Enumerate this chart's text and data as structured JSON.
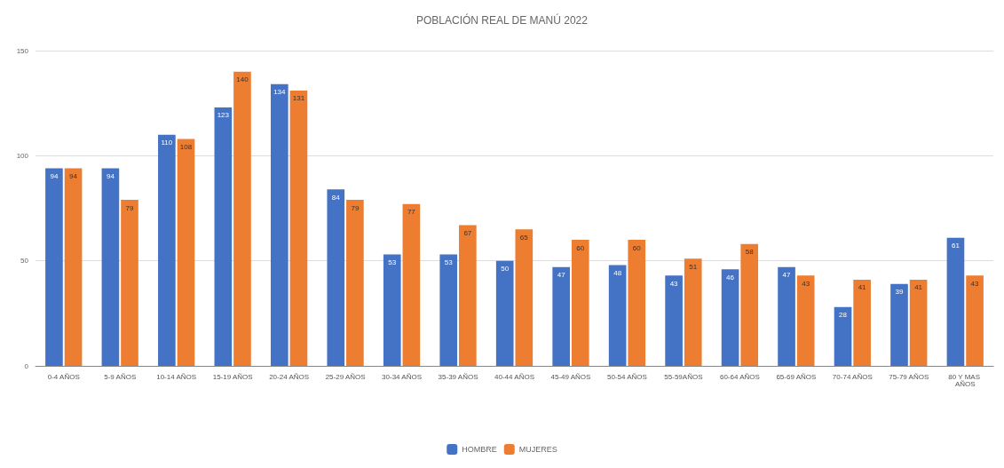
{
  "chart_data": {
    "type": "bar",
    "title": "POBLACIÓN REAL DE MANÚ 2022",
    "categories": [
      "0-4 AÑOS",
      "5-9 AÑOS",
      "10-14 AÑOS",
      "15-19 AÑOS",
      "20-24 AÑOS",
      "25-29 AÑOS",
      "30-34 AÑOS",
      "35-39 AÑOS",
      "40-44 AÑOS",
      "45-49 AÑOS",
      "50-54 AÑOS",
      "55-59AÑOS",
      "60-64 AÑOS",
      "65-69 AÑOS",
      "70-74 AÑOS",
      "75-79 AÑOS",
      "80 Y MAS AÑOS"
    ],
    "series": [
      {
        "name": "HOMBRE",
        "color": "#4472c4",
        "values": [
          94,
          94,
          110,
          123,
          134,
          84,
          53,
          53,
          50,
          47,
          48,
          43,
          46,
          47,
          28,
          39,
          61
        ]
      },
      {
        "name": "MUJERES",
        "color": "#ed7d31",
        "values": [
          94,
          79,
          108,
          140,
          131,
          79,
          77,
          67,
          65,
          60,
          60,
          51,
          58,
          43,
          41,
          41,
          43
        ]
      }
    ],
    "ylim": [
      0,
      150
    ],
    "yticks": [
      0,
      50,
      100,
      150
    ],
    "grid": "y",
    "legend": "bottom",
    "data_labels": true
  }
}
